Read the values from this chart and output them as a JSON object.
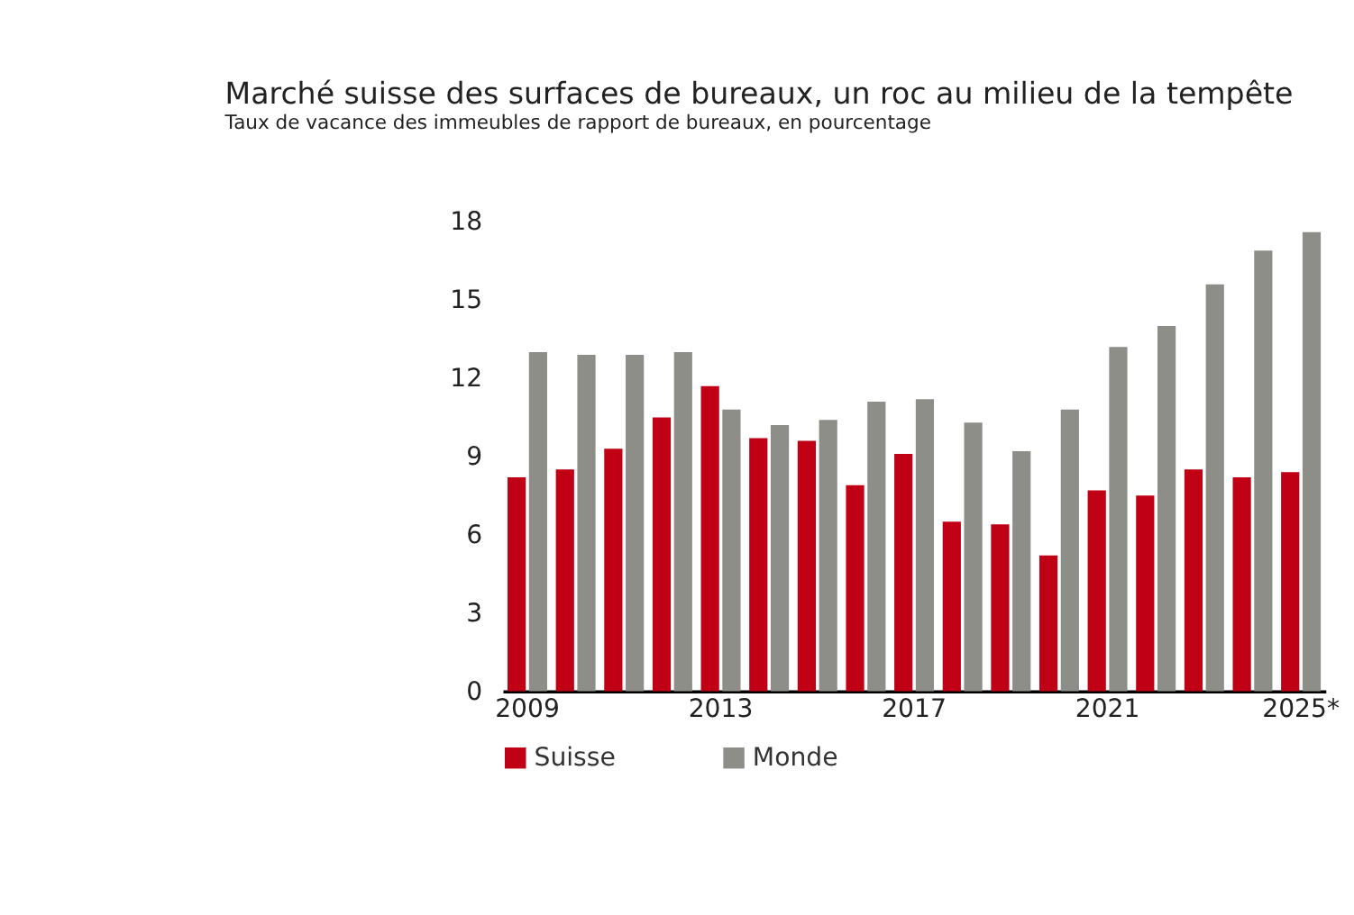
{
  "chart_data": {
    "type": "bar",
    "title": "Marché suisse des surfaces de bureaux, un roc au milieu de la tempête",
    "subtitle": "Taux de vacance des immeubles de rapport de bureaux, en pourcentage",
    "categories": [
      "2009",
      null,
      null,
      null,
      "2013",
      null,
      null,
      null,
      "2017",
      null,
      null,
      null,
      "2021",
      null,
      null,
      null,
      "2025*"
    ],
    "series": [
      {
        "name": "Suisse",
        "color": "#c00015",
        "values": [
          8.2,
          8.5,
          9.3,
          10.5,
          11.7,
          9.7,
          9.6,
          7.9,
          9.1,
          6.5,
          6.4,
          5.2,
          7.7,
          7.5,
          8.5,
          8.2,
          8.4
        ]
      },
      {
        "name": "Monde",
        "color": "#8e8e88",
        "values": [
          13.0,
          12.9,
          12.9,
          13.0,
          10.8,
          10.2,
          10.4,
          11.1,
          11.2,
          10.3,
          9.2,
          10.8,
          13.2,
          14.0,
          15.6,
          16.9,
          17.6
        ]
      }
    ],
    "ylim": [
      0,
      18
    ],
    "yticks": [
      0,
      3,
      6,
      9,
      12,
      15,
      18
    ],
    "grid": false,
    "legend": "bottom"
  }
}
